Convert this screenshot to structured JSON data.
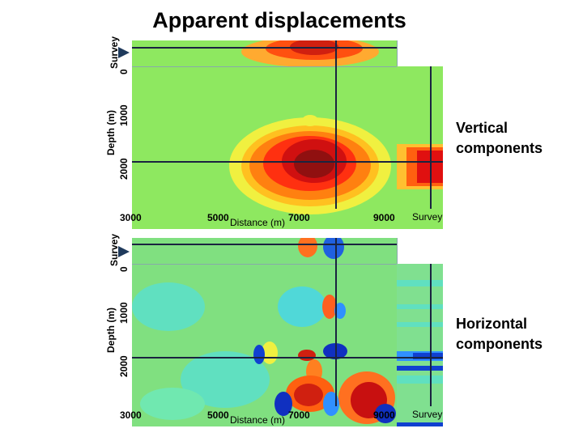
{
  "title": "Apparent displacements",
  "axis": {
    "survey": "Survey",
    "depth_label": "Depth (m)",
    "x_label": "Distance (m)",
    "x_ticks": [
      "3000",
      "5000",
      "7000",
      "9000"
    ],
    "y_ticks": [
      "0",
      "1000",
      "2000"
    ],
    "side_survey": "Survey"
  },
  "panels": {
    "vertical": {
      "line1": "Vertical",
      "line2": "components"
    },
    "horizontal": {
      "line1": "Horizontal",
      "line2": "components"
    }
  },
  "colors": {
    "background_green": "#8ee860",
    "positive_high": "#c81010",
    "positive_mid": "#ff8000",
    "negative_high": "#0030c8",
    "negative_mid": "#30b0ff",
    "grid_line": "#1a2440",
    "arrow": "#1f3a5c"
  }
}
